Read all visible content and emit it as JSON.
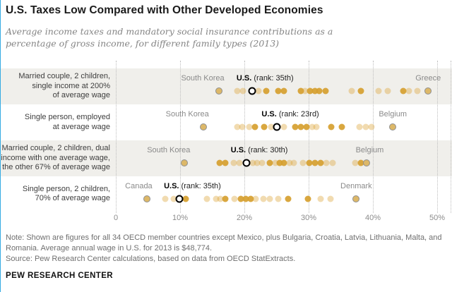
{
  "header": {
    "title": "U.S. Taxes Low Compared with Other Developed Economies",
    "subtitle": "Average income taxes and mandatory social insurance contributions as a percentage of gross income, for different family types (2013)"
  },
  "footer": {
    "note": "Note: Shown are figures for all 34 OECD member countries except Mexico, plus Bulgaria, Croatia, Latvia, Lithuania, Malta, and Romania. Average annual wage in U.S. for 2013 is $48,774.",
    "source": "Source: Pew Research Center calculations, based on data from OECD StatExtracts.",
    "brand": "PEW RESEARCH CENTER"
  },
  "colors": {
    "accent_edge": "#35aae3",
    "band": "#f0efeb",
    "dot_light": "rgba(219,166,58,0.40)",
    "dot_dark": "rgba(214,159,47,0.92)",
    "dot_ring_fill": "#ddb868",
    "dot_ring_border": "#8f8f8f",
    "us_dot_border": "#000000"
  },
  "chart_data": {
    "type": "scatter",
    "subtype": "strip-dot-plot",
    "title": "U.S. Taxes Low Compared with Other Developed Economies",
    "xlabel": "Taxes as % of gross income",
    "x_axis": {
      "min": 0,
      "max": 50,
      "ticks": [
        {
          "v": 0,
          "label": "0"
        },
        {
          "v": 10,
          "label": "10%"
        },
        {
          "v": 20,
          "label": "20%"
        },
        {
          "v": 30,
          "label": "30%"
        },
        {
          "v": 40,
          "label": "40%"
        },
        {
          "v": 50,
          "label": "50%"
        }
      ],
      "grid": true
    },
    "rows": [
      {
        "label_lines": [
          "Married couple, 2 children,",
          "single income at 200%",
          "of average wage"
        ],
        "shaded": true,
        "annotations": [
          {
            "text": "South Korea",
            "v": 16.0,
            "align": "end",
            "style": "gray"
          },
          {
            "bold": "U.S.",
            "text": " (rank: 35th)",
            "v": 21.2,
            "align": "start",
            "style": "us"
          },
          {
            "text": "Greece",
            "v": 48.6,
            "align": "center",
            "style": "gray"
          }
        ],
        "dots": [
          {
            "v": 16.0,
            "s": "ring",
            "country": "South Korea"
          },
          {
            "v": 18.9,
            "s": "light"
          },
          {
            "v": 19.8,
            "s": "light"
          },
          {
            "v": 21.2,
            "s": "open",
            "country": "U.S."
          },
          {
            "v": 22.2,
            "s": "light"
          },
          {
            "v": 23.4,
            "s": "dark"
          },
          {
            "v": 25.3,
            "s": "dark"
          },
          {
            "v": 26.1,
            "s": "dark"
          },
          {
            "v": 28.8,
            "s": "dark"
          },
          {
            "v": 29.5,
            "s": "light"
          },
          {
            "v": 30.2,
            "s": "dark"
          },
          {
            "v": 31.0,
            "s": "dark"
          },
          {
            "v": 31.7,
            "s": "dark"
          },
          {
            "v": 32.6,
            "s": "dark"
          },
          {
            "v": 36.7,
            "s": "light"
          },
          {
            "v": 38.1,
            "s": "dark"
          },
          {
            "v": 40.9,
            "s": "light"
          },
          {
            "v": 42.3,
            "s": "light"
          },
          {
            "v": 44.7,
            "s": "dark"
          },
          {
            "v": 45.6,
            "s": "light"
          },
          {
            "v": 46.9,
            "s": "light"
          },
          {
            "v": 48.6,
            "s": "ring",
            "country": "Greece"
          }
        ]
      },
      {
        "label_lines": [
          "Single person, employed",
          "at average wage"
        ],
        "shaded": false,
        "annotations": [
          {
            "text": "South Korea",
            "v": 13.6,
            "align": "end",
            "style": "gray"
          },
          {
            "bold": "U.S.",
            "text": " (rank: 23rd)",
            "v": 25.1,
            "align": "start",
            "style": "us"
          },
          {
            "text": "Belgium",
            "v": 43.1,
            "align": "center",
            "style": "gray"
          }
        ],
        "dots": [
          {
            "v": 13.6,
            "s": "ring",
            "country": "South Korea"
          },
          {
            "v": 18.9,
            "s": "light"
          },
          {
            "v": 19.7,
            "s": "light"
          },
          {
            "v": 20.8,
            "s": "light"
          },
          {
            "v": 21.6,
            "s": "dark"
          },
          {
            "v": 23.1,
            "s": "dark"
          },
          {
            "v": 24.2,
            "s": "light"
          },
          {
            "v": 25.1,
            "s": "open",
            "country": "U.S."
          },
          {
            "v": 26.1,
            "s": "light"
          },
          {
            "v": 27.9,
            "s": "dark"
          },
          {
            "v": 28.8,
            "s": "dark"
          },
          {
            "v": 29.7,
            "s": "dark"
          },
          {
            "v": 30.5,
            "s": "light"
          },
          {
            "v": 31.2,
            "s": "light"
          },
          {
            "v": 33.5,
            "s": "dark"
          },
          {
            "v": 35.2,
            "s": "dark"
          },
          {
            "v": 37.9,
            "s": "light"
          },
          {
            "v": 38.9,
            "s": "light"
          },
          {
            "v": 39.8,
            "s": "light"
          },
          {
            "v": 43.1,
            "s": "ring",
            "country": "Belgium"
          }
        ]
      },
      {
        "label_lines": [
          "Married couple, 2 children, dual",
          "income with one average wage,",
          "the other 67% of average wage"
        ],
        "shaded": true,
        "annotations": [
          {
            "text": "South Korea",
            "v": 10.7,
            "align": "end",
            "style": "gray"
          },
          {
            "bold": "U.S.",
            "text": " (rank: 30th)",
            "v": 20.3,
            "align": "start",
            "style": "us"
          },
          {
            "text": "Belgium",
            "v": 39.5,
            "align": "center",
            "style": "gray"
          }
        ],
        "dots": [
          {
            "v": 10.7,
            "s": "ring",
            "country": "South Korea"
          },
          {
            "v": 16.2,
            "s": "dark"
          },
          {
            "v": 17.0,
            "s": "dark"
          },
          {
            "v": 18.4,
            "s": "light"
          },
          {
            "v": 19.2,
            "s": "light"
          },
          {
            "v": 20.3,
            "s": "open",
            "country": "U.S."
          },
          {
            "v": 21.3,
            "s": "light"
          },
          {
            "v": 22.0,
            "s": "light"
          },
          {
            "v": 22.8,
            "s": "light"
          },
          {
            "v": 24.0,
            "s": "dark"
          },
          {
            "v": 24.8,
            "s": "light"
          },
          {
            "v": 25.5,
            "s": "dark"
          },
          {
            "v": 26.2,
            "s": "dark"
          },
          {
            "v": 27.0,
            "s": "light"
          },
          {
            "v": 27.7,
            "s": "light"
          },
          {
            "v": 29.1,
            "s": "light"
          },
          {
            "v": 30.1,
            "s": "dark"
          },
          {
            "v": 31.0,
            "s": "dark"
          },
          {
            "v": 31.9,
            "s": "dark"
          },
          {
            "v": 32.7,
            "s": "light"
          },
          {
            "v": 33.7,
            "s": "light"
          },
          {
            "v": 37.3,
            "s": "light"
          },
          {
            "v": 38.1,
            "s": "dark"
          },
          {
            "v": 39.0,
            "s": "ring",
            "country": "Belgium"
          }
        ]
      },
      {
        "label_lines": [
          "Single person, 2 children,",
          "70% of average wage"
        ],
        "shaded": false,
        "annotations": [
          {
            "text": "Canada",
            "v": 4.8,
            "align": "end",
            "style": "gray"
          },
          {
            "bold": "U.S.",
            "text": " (rank: 35th)",
            "v": 9.9,
            "align": "start",
            "style": "us"
          },
          {
            "text": "Denmark",
            "v": 37.4,
            "align": "center",
            "style": "gray"
          }
        ],
        "dots": [
          {
            "v": 4.8,
            "s": "ring",
            "country": "Canada"
          },
          {
            "v": 7.7,
            "s": "light"
          },
          {
            "v": 9.0,
            "s": "light"
          },
          {
            "v": 9.9,
            "s": "open",
            "country": "U.S."
          },
          {
            "v": 10.9,
            "s": "dark"
          },
          {
            "v": 14.2,
            "s": "light"
          },
          {
            "v": 15.6,
            "s": "light"
          },
          {
            "v": 16.3,
            "s": "light"
          },
          {
            "v": 17.0,
            "s": "dark"
          },
          {
            "v": 18.5,
            "s": "light"
          },
          {
            "v": 19.4,
            "s": "dark"
          },
          {
            "v": 20.2,
            "s": "dark"
          },
          {
            "v": 21.0,
            "s": "dark"
          },
          {
            "v": 21.8,
            "s": "light"
          },
          {
            "v": 23.0,
            "s": "light"
          },
          {
            "v": 24.0,
            "s": "light"
          },
          {
            "v": 25.3,
            "s": "light"
          },
          {
            "v": 26.8,
            "s": "dark"
          },
          {
            "v": 29.9,
            "s": "dark"
          },
          {
            "v": 31.9,
            "s": "light"
          },
          {
            "v": 33.4,
            "s": "light"
          },
          {
            "v": 37.4,
            "s": "ring",
            "country": "Denmark"
          }
        ]
      }
    ]
  }
}
